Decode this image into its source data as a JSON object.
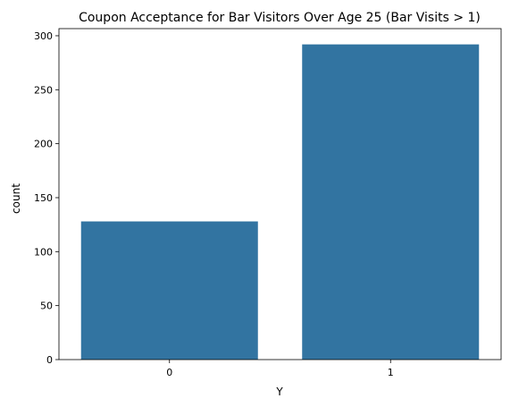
{
  "chart_data": {
    "type": "bar",
    "title": "Coupon Acceptance for Bar Visitors Over Age 25 (Bar Visits > 1)",
    "xlabel": "Y",
    "ylabel": "count",
    "categories": [
      "0",
      "1"
    ],
    "values": [
      128,
      292
    ],
    "ylim": [
      0,
      306.6
    ],
    "yticks": [
      0,
      50,
      100,
      150,
      200,
      250,
      300
    ],
    "grid": false,
    "bar_color": "#3274a1"
  }
}
